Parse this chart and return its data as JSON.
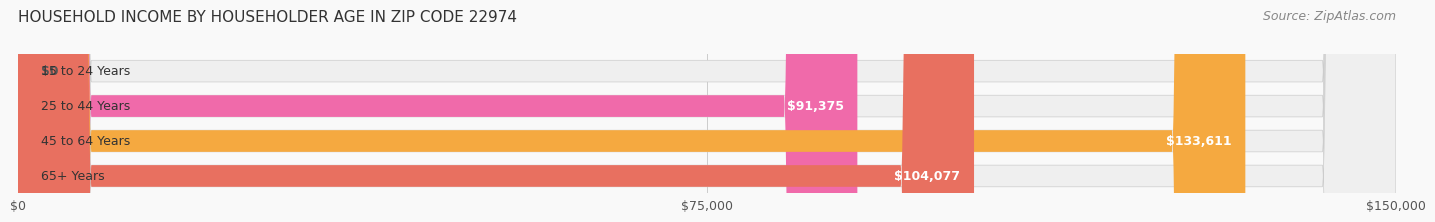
{
  "title": "HOUSEHOLD INCOME BY HOUSEHOLDER AGE IN ZIP CODE 22974",
  "source": "Source: ZipAtlas.com",
  "categories": [
    "15 to 24 Years",
    "25 to 44 Years",
    "45 to 64 Years",
    "65+ Years"
  ],
  "values": [
    0,
    91375,
    133611,
    104077
  ],
  "bar_colors": [
    "#a0a8d8",
    "#f06aaa",
    "#f5a940",
    "#e87060"
  ],
  "bar_bg_color": "#efefef",
  "value_labels": [
    "$0",
    "$91,375",
    "$133,611",
    "$104,077"
  ],
  "xlim": [
    0,
    150000
  ],
  "xtick_values": [
    0,
    75000,
    150000
  ],
  "xtick_labels": [
    "$0",
    "$75,000",
    "$150,000"
  ],
  "title_fontsize": 11,
  "source_fontsize": 9,
  "label_fontsize": 9,
  "value_fontsize": 9,
  "background_color": "#f9f9f9"
}
